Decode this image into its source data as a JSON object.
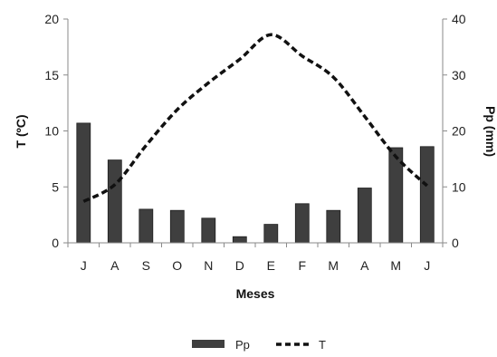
{
  "chart_data": {
    "type": "bar",
    "categories": [
      "J",
      "A",
      "S",
      "O",
      "N",
      "D",
      "E",
      "F",
      "M",
      "A",
      "M",
      "J"
    ],
    "xlabel": "Meses",
    "ylabel_left": "T (ºC)",
    "ylabel_right": "Pp (mm)",
    "ylim_left": [
      0,
      20
    ],
    "ylim_right": [
      0,
      40
    ],
    "yticks_left": [
      "0",
      "5",
      "10",
      "15",
      "20"
    ],
    "yticks_right": [
      "0",
      "10",
      "20",
      "30",
      "40"
    ],
    "grid": false,
    "legend_position": "bottom",
    "series": [
      {
        "name": "Pp",
        "type": "bar",
        "axis": "right",
        "color": "#3f3f3f",
        "values": [
          21.4,
          14.8,
          6.0,
          5.8,
          4.4,
          1.1,
          3.3,
          7.0,
          5.8,
          9.8,
          17.0,
          17.2
        ]
      },
      {
        "name": "T",
        "type": "line",
        "axis": "left",
        "color": "#111111",
        "dash": "dashed",
        "values": [
          3.7,
          5.2,
          8.7,
          11.9,
          14.3,
          16.4,
          18.6,
          16.7,
          14.8,
          11.3,
          7.7,
          5.1
        ]
      }
    ]
  }
}
